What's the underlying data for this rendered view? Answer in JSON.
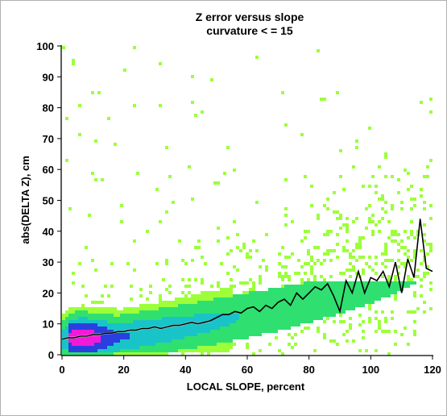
{
  "chart_data": {
    "type": "heatmap",
    "title": "Z error versus slope",
    "subtitle": "curvature < = 15",
    "xlabel": "LOCAL SLOPE, percent",
    "ylabel": "abs(DELTA Z), cm",
    "xlim": [
      0,
      120
    ],
    "ylim": [
      0,
      100
    ],
    "xticks": [
      "0",
      "20",
      "40",
      "60",
      "80",
      "100",
      "120"
    ],
    "yticks": [
      "0",
      "10",
      "20",
      "30",
      "40",
      "50",
      "60",
      "70",
      "80",
      "90",
      "100"
    ],
    "colors": {
      "sparse": "#9cff3a",
      "low": "#2fe070",
      "mid": "#18c4c8",
      "high": "#2a3fe0",
      "peak": "#f21ad8",
      "median_line": "#000000",
      "median_line_highlight": "#ffffff"
    },
    "series": [
      {
        "name": "",
        "x": [
          0,
          2,
          4,
          6,
          8,
          10,
          12,
          14,
          16,
          18,
          20,
          22,
          24,
          26,
          28,
          30,
          32,
          34,
          36,
          38,
          40,
          42,
          44,
          46,
          48,
          50,
          52,
          54,
          56,
          58,
          60,
          62,
          64,
          66,
          68,
          70,
          72,
          74,
          76,
          78,
          80,
          82,
          84,
          86,
          88,
          90,
          92,
          94,
          96,
          98,
          100,
          102,
          104,
          106,
          108,
          110,
          112,
          114,
          116,
          118,
          120
        ],
        "y": [
          5,
          5.5,
          5.5,
          6,
          6,
          6.5,
          6.5,
          7,
          7,
          7.5,
          7.5,
          8,
          8,
          8.5,
          8.5,
          9,
          8.5,
          9,
          9.5,
          9.5,
          10,
          10.5,
          10,
          10.5,
          11,
          12,
          13,
          13,
          14,
          13.5,
          15,
          15.5,
          14,
          16,
          15,
          17,
          18,
          16,
          20,
          18,
          20,
          22,
          21,
          23,
          19,
          14,
          24,
          20,
          27,
          20,
          25,
          24,
          27,
          22,
          30,
          20,
          31,
          25,
          44,
          28,
          27
        ]
      }
    ]
  }
}
